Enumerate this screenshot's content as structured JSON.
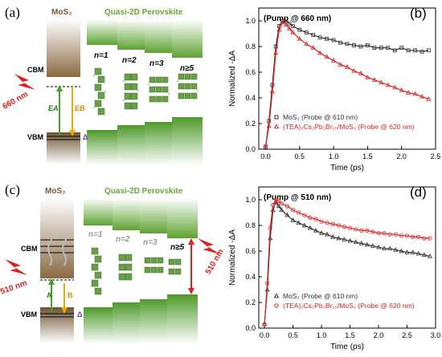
{
  "panels": {
    "a": {
      "label": "(a)",
      "mos2_title": "MoS₂",
      "perovskite_title": "Quasi-2D Perovskite",
      "cbm": "CBM",
      "vbm": "VBM",
      "n_labels": [
        "n=1",
        "n=2",
        "n=3",
        "n≥5"
      ],
      "excitation": "660 nm",
      "ea": "EA",
      "eb": "EB",
      "delta": "Δ"
    },
    "c": {
      "label": "(c)",
      "mos2_title": "MoS₂",
      "perovskite_title": "Quasi-2D Perovskite",
      "cbm": "CBM",
      "vbm": "VBM",
      "n_labels": [
        "n=1",
        "n=2",
        "n=3",
        "n≥5"
      ],
      "excitation_left": "510 nm",
      "excitation_right": "510 nm",
      "a": "A",
      "b": "B",
      "delta": "Δ"
    }
  },
  "chart_data": [
    {
      "panel": "(b)",
      "type": "scatter",
      "title": "(Pump @ 660 nm)",
      "xlabel": "Time (ps)",
      "ylabel": "Normalized -ΔA",
      "xlim": [
        -0.1,
        2.5
      ],
      "ylim": [
        0.0,
        1.1
      ],
      "xticks": [
        "0.0",
        "0.5",
        "1.0",
        "1.5",
        "2.0",
        "2.5"
      ],
      "yticks": [
        "0.0",
        "0.2",
        "0.4",
        "0.6",
        "0.8",
        "1.0"
      ],
      "legend": "bottom",
      "series": [
        {
          "name": "MoS₂ (Probe @ 610 nm)",
          "color": "#333333",
          "marker": "square",
          "x": [
            0.0,
            0.05,
            0.1,
            0.15,
            0.2,
            0.25,
            0.3,
            0.35,
            0.4,
            0.5,
            0.6,
            0.7,
            0.8,
            0.9,
            1.0,
            1.1,
            1.2,
            1.3,
            1.4,
            1.5,
            1.6,
            1.7,
            1.8,
            1.9,
            2.0,
            2.1,
            2.2,
            2.3,
            2.4
          ],
          "y": [
            0.02,
            0.22,
            0.5,
            0.8,
            0.96,
            1.0,
            1.0,
            0.98,
            0.96,
            0.93,
            0.91,
            0.89,
            0.87,
            0.86,
            0.85,
            0.83,
            0.82,
            0.81,
            0.8,
            0.81,
            0.79,
            0.79,
            0.79,
            0.77,
            0.79,
            0.77,
            0.77,
            0.76,
            0.77
          ]
        },
        {
          "name": "(TEA)₂Cs₂Pb₃Br₁₀/MoS₂ (Probe @ 620 nm)",
          "color": "#e02020",
          "marker": "triangle",
          "x": [
            0.0,
            0.05,
            0.1,
            0.15,
            0.2,
            0.25,
            0.3,
            0.35,
            0.4,
            0.5,
            0.6,
            0.7,
            0.8,
            0.9,
            1.0,
            1.1,
            1.2,
            1.3,
            1.4,
            1.5,
            1.6,
            1.7,
            1.8,
            1.9,
            2.0,
            2.1,
            2.2,
            2.3,
            2.4
          ],
          "y": [
            0.02,
            0.18,
            0.45,
            0.75,
            0.93,
            0.99,
            0.97,
            0.94,
            0.91,
            0.86,
            0.82,
            0.79,
            0.75,
            0.72,
            0.69,
            0.66,
            0.64,
            0.61,
            0.59,
            0.56,
            0.54,
            0.52,
            0.5,
            0.48,
            0.46,
            0.44,
            0.43,
            0.41,
            0.39
          ]
        }
      ]
    },
    {
      "panel": "(d)",
      "type": "scatter",
      "title": "(Pump @ 510 nm)",
      "xlabel": "Time (ps)",
      "ylabel": "Normalized -ΔA",
      "xlim": [
        -0.1,
        3.0
      ],
      "ylim": [
        0.0,
        1.1
      ],
      "xticks": [
        "0.0",
        "0.5",
        "1.0",
        "1.5",
        "2.0",
        "2.5",
        "3.0"
      ],
      "yticks": [
        "0.0",
        "0.2",
        "0.4",
        "0.6",
        "0.8",
        "1.0"
      ],
      "legend": "bottom",
      "series": [
        {
          "name": "MoS₂ (Probe @ 610 nm)",
          "color": "#333333",
          "marker": "triangle",
          "x": [
            0.0,
            0.05,
            0.1,
            0.15,
            0.2,
            0.25,
            0.3,
            0.4,
            0.5,
            0.6,
            0.7,
            0.8,
            0.9,
            1.0,
            1.1,
            1.2,
            1.3,
            1.4,
            1.5,
            1.6,
            1.7,
            1.8,
            1.9,
            2.0,
            2.1,
            2.2,
            2.3,
            2.4,
            2.5,
            2.6,
            2.7,
            2.8,
            2.9
          ],
          "y": [
            0.03,
            0.3,
            0.7,
            0.92,
            0.98,
            0.95,
            0.92,
            0.88,
            0.84,
            0.82,
            0.8,
            0.78,
            0.76,
            0.74,
            0.73,
            0.71,
            0.7,
            0.69,
            0.68,
            0.67,
            0.66,
            0.65,
            0.64,
            0.63,
            0.62,
            0.62,
            0.61,
            0.6,
            0.59,
            0.59,
            0.58,
            0.57,
            0.56
          ]
        },
        {
          "name": "(TEA)₂Cs₂Pb₃Br₁₀/MoS₂ (Probe @ 620 nm)",
          "color": "#e02020",
          "marker": "circle",
          "x": [
            0.0,
            0.05,
            0.1,
            0.15,
            0.2,
            0.25,
            0.3,
            0.4,
            0.5,
            0.6,
            0.7,
            0.8,
            0.9,
            1.0,
            1.1,
            1.2,
            1.3,
            1.4,
            1.5,
            1.6,
            1.7,
            1.8,
            1.9,
            2.0,
            2.1,
            2.2,
            2.3,
            2.4,
            2.5,
            2.6,
            2.7,
            2.8,
            2.9
          ],
          "y": [
            0.03,
            0.35,
            0.78,
            0.96,
            1.0,
            0.99,
            0.97,
            0.95,
            0.92,
            0.9,
            0.88,
            0.86,
            0.85,
            0.83,
            0.82,
            0.81,
            0.8,
            0.79,
            0.78,
            0.77,
            0.76,
            0.76,
            0.75,
            0.74,
            0.74,
            0.73,
            0.73,
            0.72,
            0.72,
            0.71,
            0.71,
            0.7,
            0.7
          ]
        }
      ]
    }
  ]
}
